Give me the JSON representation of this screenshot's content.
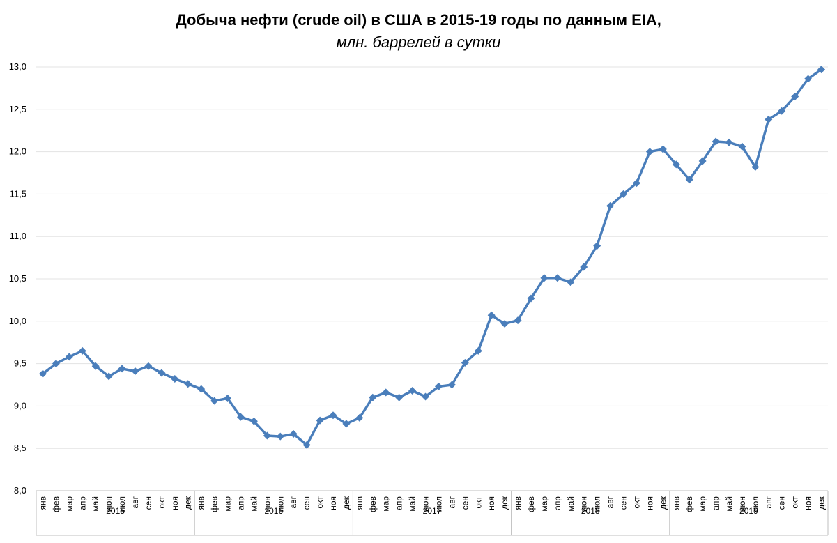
{
  "chart_data": {
    "type": "line",
    "title": "Добыча нефти (crude oil) в США в 2015-19 годы по данным EIA,",
    "subtitle": "млн. баррелей в сутки",
    "xlabel": "",
    "ylabel": "",
    "ylim": [
      8.0,
      13.0
    ],
    "ytick_step": 0.5,
    "grid": "horizontal",
    "line_color": "#4a7ebb",
    "marker": "diamond",
    "years": [
      "2015",
      "2016",
      "2017",
      "2018",
      "2019"
    ],
    "months": [
      "янв",
      "фев",
      "мар",
      "апр",
      "май",
      "июн",
      "июл",
      "авг",
      "сен",
      "окт",
      "ноя",
      "дек"
    ],
    "values": [
      9.38,
      9.5,
      9.58,
      9.65,
      9.47,
      9.35,
      9.44,
      9.41,
      9.47,
      9.39,
      9.32,
      9.26,
      9.2,
      9.06,
      9.09,
      8.87,
      8.82,
      8.65,
      8.64,
      8.67,
      8.54,
      8.83,
      8.89,
      8.79,
      8.86,
      9.1,
      9.16,
      9.1,
      9.18,
      9.11,
      9.23,
      9.25,
      9.51,
      9.65,
      10.07,
      9.97,
      10.01,
      10.27,
      10.51,
      10.51,
      10.46,
      10.64,
      10.89,
      11.36,
      11.5,
      11.63,
      12.0,
      12.03,
      11.85,
      11.67,
      11.89,
      12.12,
      12.11,
      12.06,
      11.82,
      12.38,
      12.48,
      12.65,
      12.86,
      12.97
    ]
  }
}
